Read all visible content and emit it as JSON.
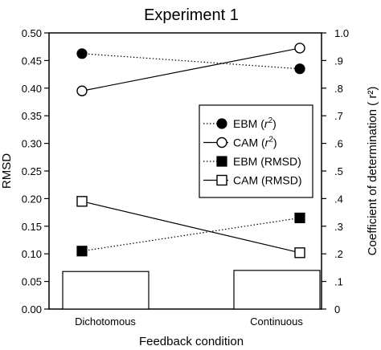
{
  "chart_data": {
    "type": "line",
    "title": "Experiment 1",
    "xlabel": "Feedback condition",
    "ylabel_left": "RMSD",
    "ylabel_right": "Coefficient of determination ( r²)",
    "categories": [
      "Dichotomous",
      "Continuous"
    ],
    "ylim_left": [
      0.0,
      0.5
    ],
    "ylim_right": [
      0.0,
      1.0
    ],
    "left_ticks": [
      "0.00",
      "0.05",
      "0.10",
      "0.15",
      "0.20",
      "0.25",
      "0.30",
      "0.35",
      "0.40",
      "0.45",
      "0.50"
    ],
    "right_ticks": [
      "0",
      ".1",
      ".2",
      ".3",
      ".4",
      ".5",
      ".6",
      ".7",
      ".8",
      ".9",
      "1.0"
    ],
    "bars": {
      "axis": "left",
      "values": [
        0.068,
        0.07
      ]
    },
    "series": [
      {
        "name": "EBM (r²)",
        "axis": "right",
        "marker": "filled-circle",
        "line": "dotted",
        "values": [
          0.925,
          0.87
        ]
      },
      {
        "name": "CAM (r²)",
        "axis": "right",
        "marker": "open-circle",
        "line": "solid",
        "values": [
          0.79,
          0.945
        ]
      },
      {
        "name": "EBM (RMSD)",
        "axis": "left",
        "marker": "filled-square",
        "line": "dotted",
        "values": [
          0.105,
          0.165
        ]
      },
      {
        "name": "CAM (RMSD)",
        "axis": "left",
        "marker": "open-square",
        "line": "solid",
        "values": [
          0.195,
          0.102
        ]
      }
    ],
    "legend": {
      "placement": "center-right",
      "entries": [
        {
          "prefix": "EBM (",
          "italic": "r",
          "sup": "2",
          "suffix": ")"
        },
        {
          "prefix": "CAM  (",
          "italic": "r",
          "sup": "2",
          "suffix": ")"
        },
        {
          "prefix": "EBM (RMSD)",
          "italic": "",
          "sup": "",
          "suffix": ""
        },
        {
          "prefix": "CAM (RMSD)",
          "italic": "",
          "sup": "",
          "suffix": ""
        }
      ]
    },
    "grid": false
  }
}
